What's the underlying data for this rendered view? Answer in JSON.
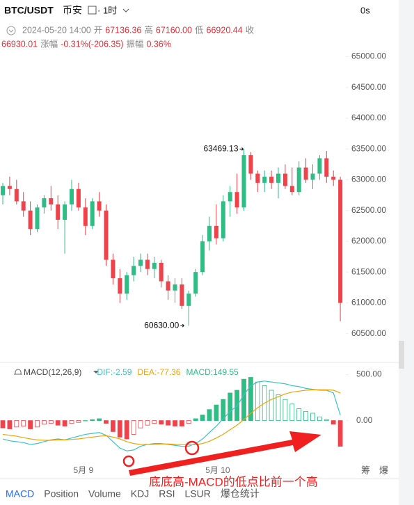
{
  "header": {
    "pair": "BTC/USDT",
    "exchange": "币安",
    "interval": "· 1时",
    "timer": "0s",
    "time": "2024-05-20 14:00",
    "open_label": "开",
    "open": "67136.36",
    "high_label": "高",
    "high": "67160.00",
    "low_label": "低",
    "low": "66920.44",
    "close_label": "收",
    "close": "66930.01",
    "change_label": "涨幅",
    "change": "-0.31%(-206.35)",
    "amplitude_label": "振幅",
    "amplitude": "0.36%"
  },
  "chart_data": [
    {
      "type": "candlestick",
      "up_color": "#2ebd85",
      "down_color": "#f0424b",
      "open": [
        62750,
        62900,
        62850,
        62650,
        62500,
        62200,
        62550,
        62700,
        62600,
        62350,
        62600,
        62850,
        62550,
        62250,
        62650,
        62500,
        61700,
        61400,
        61150,
        61450,
        61600,
        61700,
        61550,
        61650,
        61350,
        61200,
        61300,
        60950,
        61150,
        61500,
        62000,
        62250,
        62050,
        62650,
        62800,
        62550,
        63400,
        63100,
        62950,
        63050,
        62950,
        63100,
        62900,
        62800,
        63200,
        63000,
        63100,
        63350,
        63050,
        63000
      ],
      "high": [
        62950,
        63050,
        63000,
        62800,
        62650,
        62600,
        62750,
        62900,
        62750,
        62650,
        63000,
        62950,
        62700,
        62700,
        62800,
        62600,
        61800,
        61550,
        61500,
        61750,
        61800,
        61800,
        61750,
        61700,
        61450,
        61400,
        61400,
        61200,
        61550,
        62100,
        62400,
        62600,
        62750,
        62900,
        63100,
        63500,
        63450,
        63150,
        63150,
        63150,
        63200,
        63250,
        63200,
        63300,
        63350,
        63250,
        63400,
        63469.13,
        63150,
        63050
      ],
      "low": [
        62600,
        62750,
        62600,
        62400,
        62100,
        62150,
        62450,
        62500,
        62200,
        61800,
        62500,
        62500,
        62100,
        62200,
        62400,
        61600,
        61300,
        61000,
        61050,
        61350,
        61500,
        61450,
        61400,
        61250,
        61050,
        61000,
        60900,
        60630,
        61100,
        61450,
        61850,
        61950,
        62000,
        62400,
        62450,
        62500,
        63000,
        62800,
        62800,
        62850,
        62700,
        62850,
        62750,
        62750,
        62950,
        62850,
        63000,
        62950,
        62900,
        60700
      ],
      "close": [
        62900,
        62850,
        62650,
        62500,
        62200,
        62550,
        62700,
        62600,
        62350,
        62600,
        62850,
        62550,
        62250,
        62650,
        62500,
        61700,
        61400,
        61150,
        61450,
        61600,
        61700,
        61550,
        61650,
        61350,
        61200,
        61300,
        60950,
        61150,
        61500,
        62000,
        62250,
        62050,
        62650,
        62800,
        62550,
        63400,
        63100,
        62950,
        63050,
        62950,
        63100,
        62900,
        62800,
        63200,
        63000,
        63100,
        63350,
        63050,
        63000,
        61000
      ],
      "ylim": [
        60100,
        65300
      ],
      "yticks": [
        {
          "value": 65000,
          "label": "65000.00"
        },
        {
          "value": 64500,
          "label": "64500.00"
        },
        {
          "value": 64000,
          "label": "64000.00"
        },
        {
          "value": 63500,
          "label": "63500.00"
        },
        {
          "value": 63000,
          "label": "63000.00"
        },
        {
          "value": 62500,
          "label": "62500.00"
        },
        {
          "value": 62000,
          "label": "62000.00"
        },
        {
          "value": 61500,
          "label": "61500.00"
        },
        {
          "value": 61000,
          "label": "61000.00"
        },
        {
          "value": 60500,
          "label": "60500.00"
        }
      ],
      "max_label": "63469.13",
      "min_label": "60630.00"
    },
    {
      "type": "macd",
      "title": "MACD(12,26,9)",
      "dif_label": "DIF:-2.59",
      "dea_label": "DEA:-77.36",
      "macd_label": "MACD:149.55",
      "hist_up_color": "#2ebd85",
      "hist_down_color": "#f0424b",
      "histogram": [
        -80,
        -90,
        -70,
        -60,
        -90,
        -70,
        -40,
        -30,
        -50,
        -60,
        -30,
        -20,
        0,
        10,
        20,
        -30,
        -120,
        -180,
        -200,
        -150,
        -80,
        -50,
        -30,
        -40,
        -50,
        -60,
        -60,
        -30,
        20,
        60,
        120,
        170,
        230,
        300,
        330,
        450,
        470,
        420,
        380,
        330,
        280,
        230,
        180,
        130,
        100,
        80,
        40,
        10,
        -40,
        -280
      ],
      "series": [
        {
          "name": "DIF",
          "color": "#3cc3c8",
          "values": [
            -200,
            -220,
            -230,
            -240,
            -260,
            -250,
            -230,
            -210,
            -200,
            -210,
            -190,
            -170,
            -150,
            -140,
            -130,
            -160,
            -230,
            -300,
            -330,
            -320,
            -280,
            -260,
            -250,
            -250,
            -260,
            -270,
            -280,
            -280,
            -250,
            -200,
            -130,
            -60,
            20,
            100,
            160,
            280,
            380,
            420,
            430,
            420,
            410,
            400,
            380,
            370,
            350,
            340,
            330,
            330,
            300,
            60
          ]
        },
        {
          "name": "DEA",
          "color": "#f0a30a",
          "values": [
            -150,
            -160,
            -170,
            -185,
            -200,
            -210,
            -215,
            -215,
            -210,
            -210,
            -205,
            -200,
            -190,
            -180,
            -170,
            -165,
            -180,
            -200,
            -230,
            -250,
            -260,
            -260,
            -260,
            -255,
            -255,
            -258,
            -262,
            -265,
            -262,
            -250,
            -225,
            -190,
            -150,
            -100,
            -50,
            10,
            80,
            140,
            190,
            230,
            260,
            290,
            310,
            320,
            330,
            335,
            335,
            335,
            330,
            300
          ]
        }
      ],
      "ylim": [
        -480,
        580
      ],
      "yticks": [
        {
          "value": 500,
          "label": "500.00"
        },
        {
          "value": 0,
          "label": "0.00"
        }
      ],
      "xticks": [
        {
          "value": 11.7,
          "label": "5月 9"
        },
        {
          "value": 31.2,
          "label": "5月 10"
        }
      ]
    }
  ],
  "side": {
    "chips": "筹",
    "liq": "爆"
  },
  "annotation": "底底高-MACD的低点比前一个高",
  "tabs": [
    "MACD",
    "Position",
    "Volume",
    "KDJ",
    "RSI",
    "LSUR",
    "爆仓统计"
  ]
}
